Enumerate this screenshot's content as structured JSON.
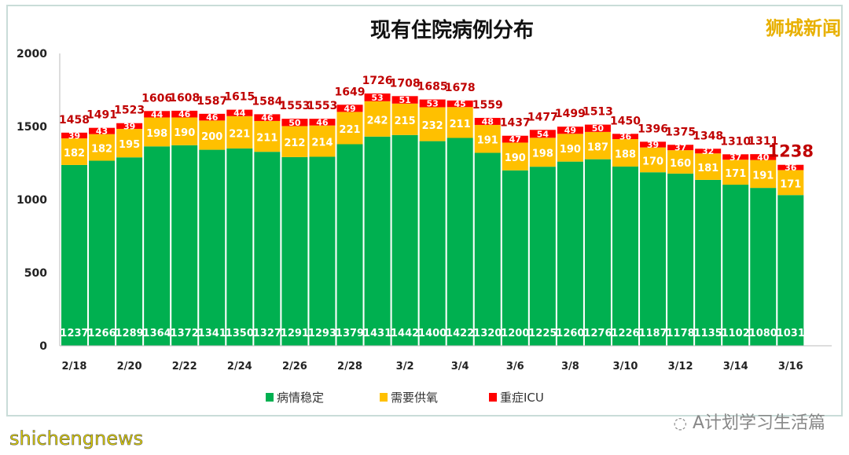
{
  "watermarks": {
    "top_right": "狮城新闻",
    "bottom_right": "A计划学习生活篇",
    "bottom_left": "shichengnews"
  },
  "colors": {
    "stable": "#00b050",
    "oxygen": "#ffc000",
    "icu": "#ff0000",
    "total_label": "#c00000"
  },
  "chart_data": {
    "type": "bar",
    "stacked": true,
    "title": "现有住院病例分布",
    "categories": [
      "2/18",
      "2/19",
      "2/20",
      "2/21",
      "2/22",
      "2/23",
      "2/24",
      "2/25",
      "2/26",
      "2/27",
      "2/28",
      "3/1",
      "3/2",
      "3/3",
      "3/4",
      "3/5",
      "3/6",
      "3/7",
      "3/8",
      "3/9",
      "3/10",
      "3/11",
      "3/12",
      "3/13",
      "3/14",
      "3/15",
      "3/16"
    ],
    "tick_labels": [
      "2/18",
      "2/20",
      "2/22",
      "2/24",
      "2/26",
      "2/28",
      "3/2",
      "3/4",
      "3/6",
      "3/8",
      "3/10",
      "3/12",
      "3/14",
      "3/16"
    ],
    "y_ticks": [
      0,
      500,
      1000,
      1500,
      2000
    ],
    "ylim": [
      0,
      2000
    ],
    "grid": false,
    "legend_position": "bottom",
    "series": [
      {
        "name": "病情稳定",
        "color": "#00b050",
        "values": [
          1237,
          1266,
          1289,
          1364,
          1372,
          1341,
          1350,
          1327,
          1291,
          1293,
          1379,
          1431,
          1442,
          1400,
          1422,
          1320,
          1200,
          1225,
          1260,
          1276,
          1226,
          1187,
          1178,
          1135,
          1102,
          1080,
          1031
        ]
      },
      {
        "name": "需要供氧",
        "color": "#ffc000",
        "values": [
          182,
          182,
          195,
          198,
          190,
          200,
          221,
          211,
          212,
          214,
          221,
          242,
          215,
          232,
          211,
          191,
          190,
          198,
          190,
          187,
          188,
          170,
          160,
          181,
          171,
          191,
          171
        ]
      },
      {
        "name": "重症ICU",
        "color": "#ff0000",
        "values": [
          39,
          43,
          39,
          44,
          46,
          46,
          44,
          46,
          50,
          46,
          49,
          53,
          51,
          53,
          45,
          48,
          47,
          54,
          49,
          50,
          36,
          39,
          37,
          32,
          37,
          40,
          36
        ]
      }
    ],
    "totals": [
      1458,
      1491,
      1523,
      1606,
      1608,
      1587,
      1615,
      1584,
      1553,
      1553,
      1649,
      1726,
      1708,
      1685,
      1678,
      1559,
      1437,
      1477,
      1499,
      1513,
      1450,
      1396,
      1375,
      1348,
      1310,
      1311,
      1238
    ]
  }
}
